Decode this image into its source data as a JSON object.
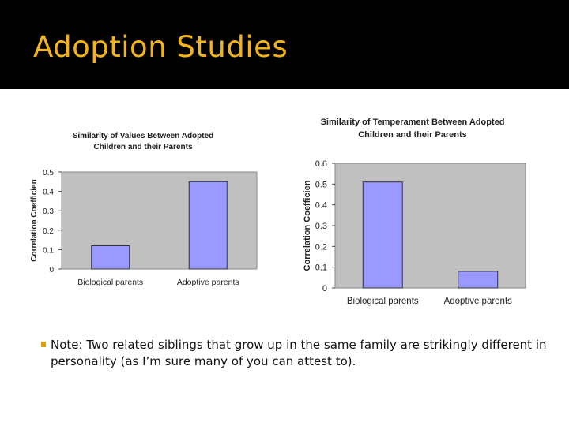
{
  "slide": {
    "title": "Adoption Studies"
  },
  "note": {
    "text": "Note: Two related siblings that grow up in the same family are strikingly different in personality (as I’m sure many of you can attest to)."
  },
  "charts": [
    {
      "title_lines": [
        "Similarity of Values Between Adopted",
        "Children and their Parents"
      ],
      "ylabel": "Correlation Coefficien",
      "yticks": [
        "0",
        "0.1",
        "0.2",
        "0.3",
        "0.4",
        "0.5"
      ],
      "categories": [
        "Biological parents",
        "Adoptive parents"
      ],
      "colors": {
        "bar": "#9999ff",
        "plot_bg": "#c0c0c0"
      }
    },
    {
      "title_lines": [
        "Similarity of Temperament Between Adopted",
        "Children and their Parents"
      ],
      "ylabel": "Correlation Coefficien",
      "yticks": [
        "0",
        "0.1",
        "0.2",
        "0.3",
        "0.4",
        "0.5",
        "0.6"
      ],
      "categories": [
        "Biological parents",
        "Adoptive parents"
      ],
      "colors": {
        "bar": "#9999ff",
        "plot_bg": "#c0c0c0"
      }
    }
  ],
  "chart_data": [
    {
      "type": "bar",
      "title": "Similarity of Values Between Adopted Children and their Parents",
      "xlabel": "",
      "ylabel": "Correlation Coefficien",
      "categories": [
        "Biological parents",
        "Adoptive parents"
      ],
      "values": [
        0.12,
        0.45
      ],
      "ylim": [
        0,
        0.5
      ],
      "grid": false,
      "legend": "none"
    },
    {
      "type": "bar",
      "title": "Similarity of Temperament Between Adopted Children and their Parents",
      "xlabel": "",
      "ylabel": "Correlation Coefficien",
      "categories": [
        "Biological parents",
        "Adoptive parents"
      ],
      "values": [
        0.51,
        0.08
      ],
      "ylim": [
        0,
        0.6
      ],
      "grid": false,
      "legend": "none"
    }
  ]
}
